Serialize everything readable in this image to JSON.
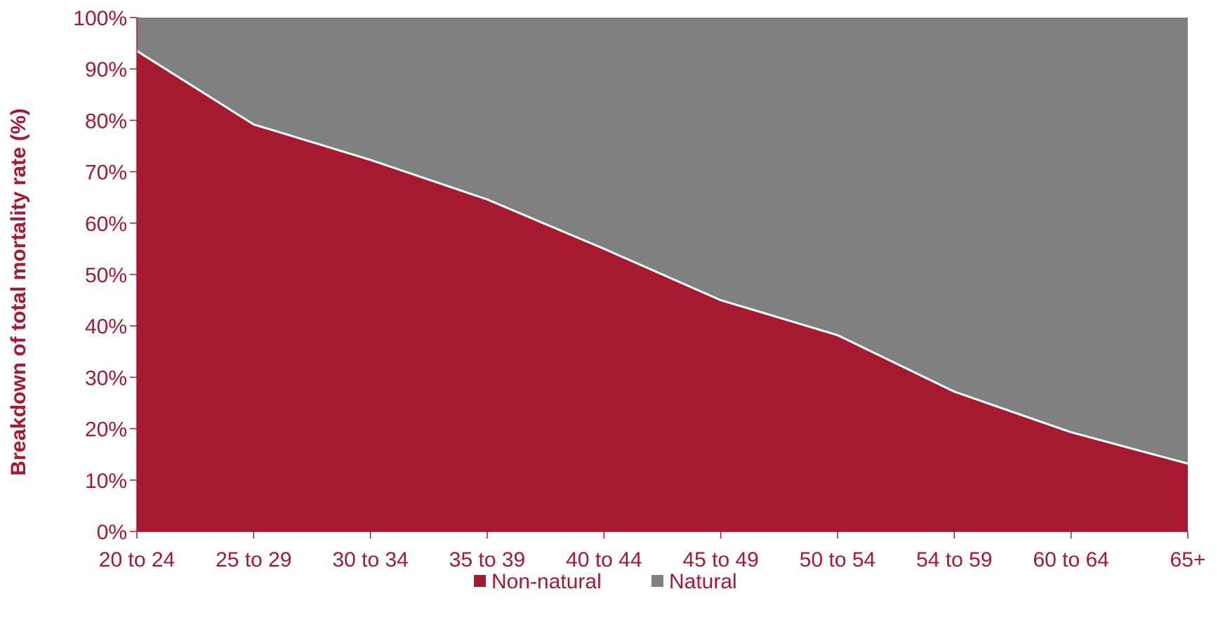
{
  "chart_data": {
    "type": "area",
    "stacked": true,
    "percent_stacked": true,
    "title": "",
    "xlabel": "",
    "ylabel": "Breakdown of total mortality rate (%)",
    "categories": [
      "20 to 24",
      "25 to 29",
      "30 to 34",
      "35 to 39",
      "40 to 44",
      "45 to 49",
      "50 to 54",
      "54 to 59",
      "60 to 64",
      "65+"
    ],
    "yticks": [
      "0%",
      "10%",
      "20%",
      "30%",
      "40%",
      "50%",
      "60%",
      "70%",
      "80%",
      "90%",
      "100%"
    ],
    "ylim": [
      0,
      100
    ],
    "grid": false,
    "legend_position": "bottom",
    "series": [
      {
        "name": "Non-natural",
        "color": "#a51931",
        "values": [
          93.5,
          79.2,
          72.3,
          64.6,
          55.0,
          45.0,
          38.2,
          27.2,
          19.3,
          13.2
        ]
      },
      {
        "name": "Natural",
        "color": "#808080",
        "values": [
          6.5,
          20.8,
          27.7,
          35.4,
          45.0,
          55.0,
          61.8,
          72.8,
          80.7,
          86.8
        ]
      }
    ]
  }
}
